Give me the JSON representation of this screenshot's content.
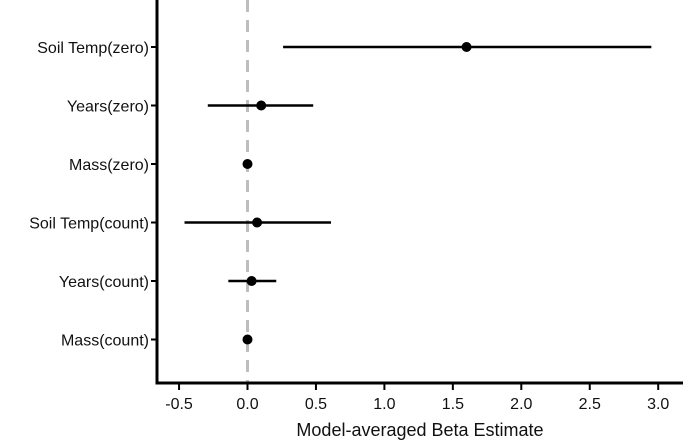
{
  "chart_data": {
    "type": "scatter",
    "subtype": "coefficient-plot",
    "title": "",
    "xlabel": "Model-averaged Beta Estimate",
    "ylabel": "",
    "xlim": [
      -0.6,
      3.05
    ],
    "x_ticks": [
      -0.5,
      0.0,
      0.5,
      1.0,
      1.5,
      2.0,
      2.5,
      3.0
    ],
    "x_tick_labels": [
      "-0.5",
      "0.0",
      "0.5",
      "1.0",
      "1.5",
      "2.0",
      "2.5",
      "3.0"
    ],
    "reference_line": {
      "x": 0,
      "style": "dashed",
      "color": "#bdbdbd"
    },
    "categories": [
      "Soil Temp(zero)",
      "Years(zero)",
      "Mass(zero)",
      "Soil Temp(count)",
      "Years(count)",
      "Mass(count)"
    ],
    "estimates": [
      1.6,
      0.1,
      0.0,
      0.07,
      0.03,
      0.0
    ],
    "lower": [
      0.26,
      -0.29,
      -0.01,
      -0.46,
      -0.14,
      -0.01
    ],
    "upper": [
      2.95,
      0.48,
      0.01,
      0.61,
      0.21,
      0.01
    ],
    "grid": false,
    "point_color": "#000000",
    "line_color": "#000000"
  }
}
